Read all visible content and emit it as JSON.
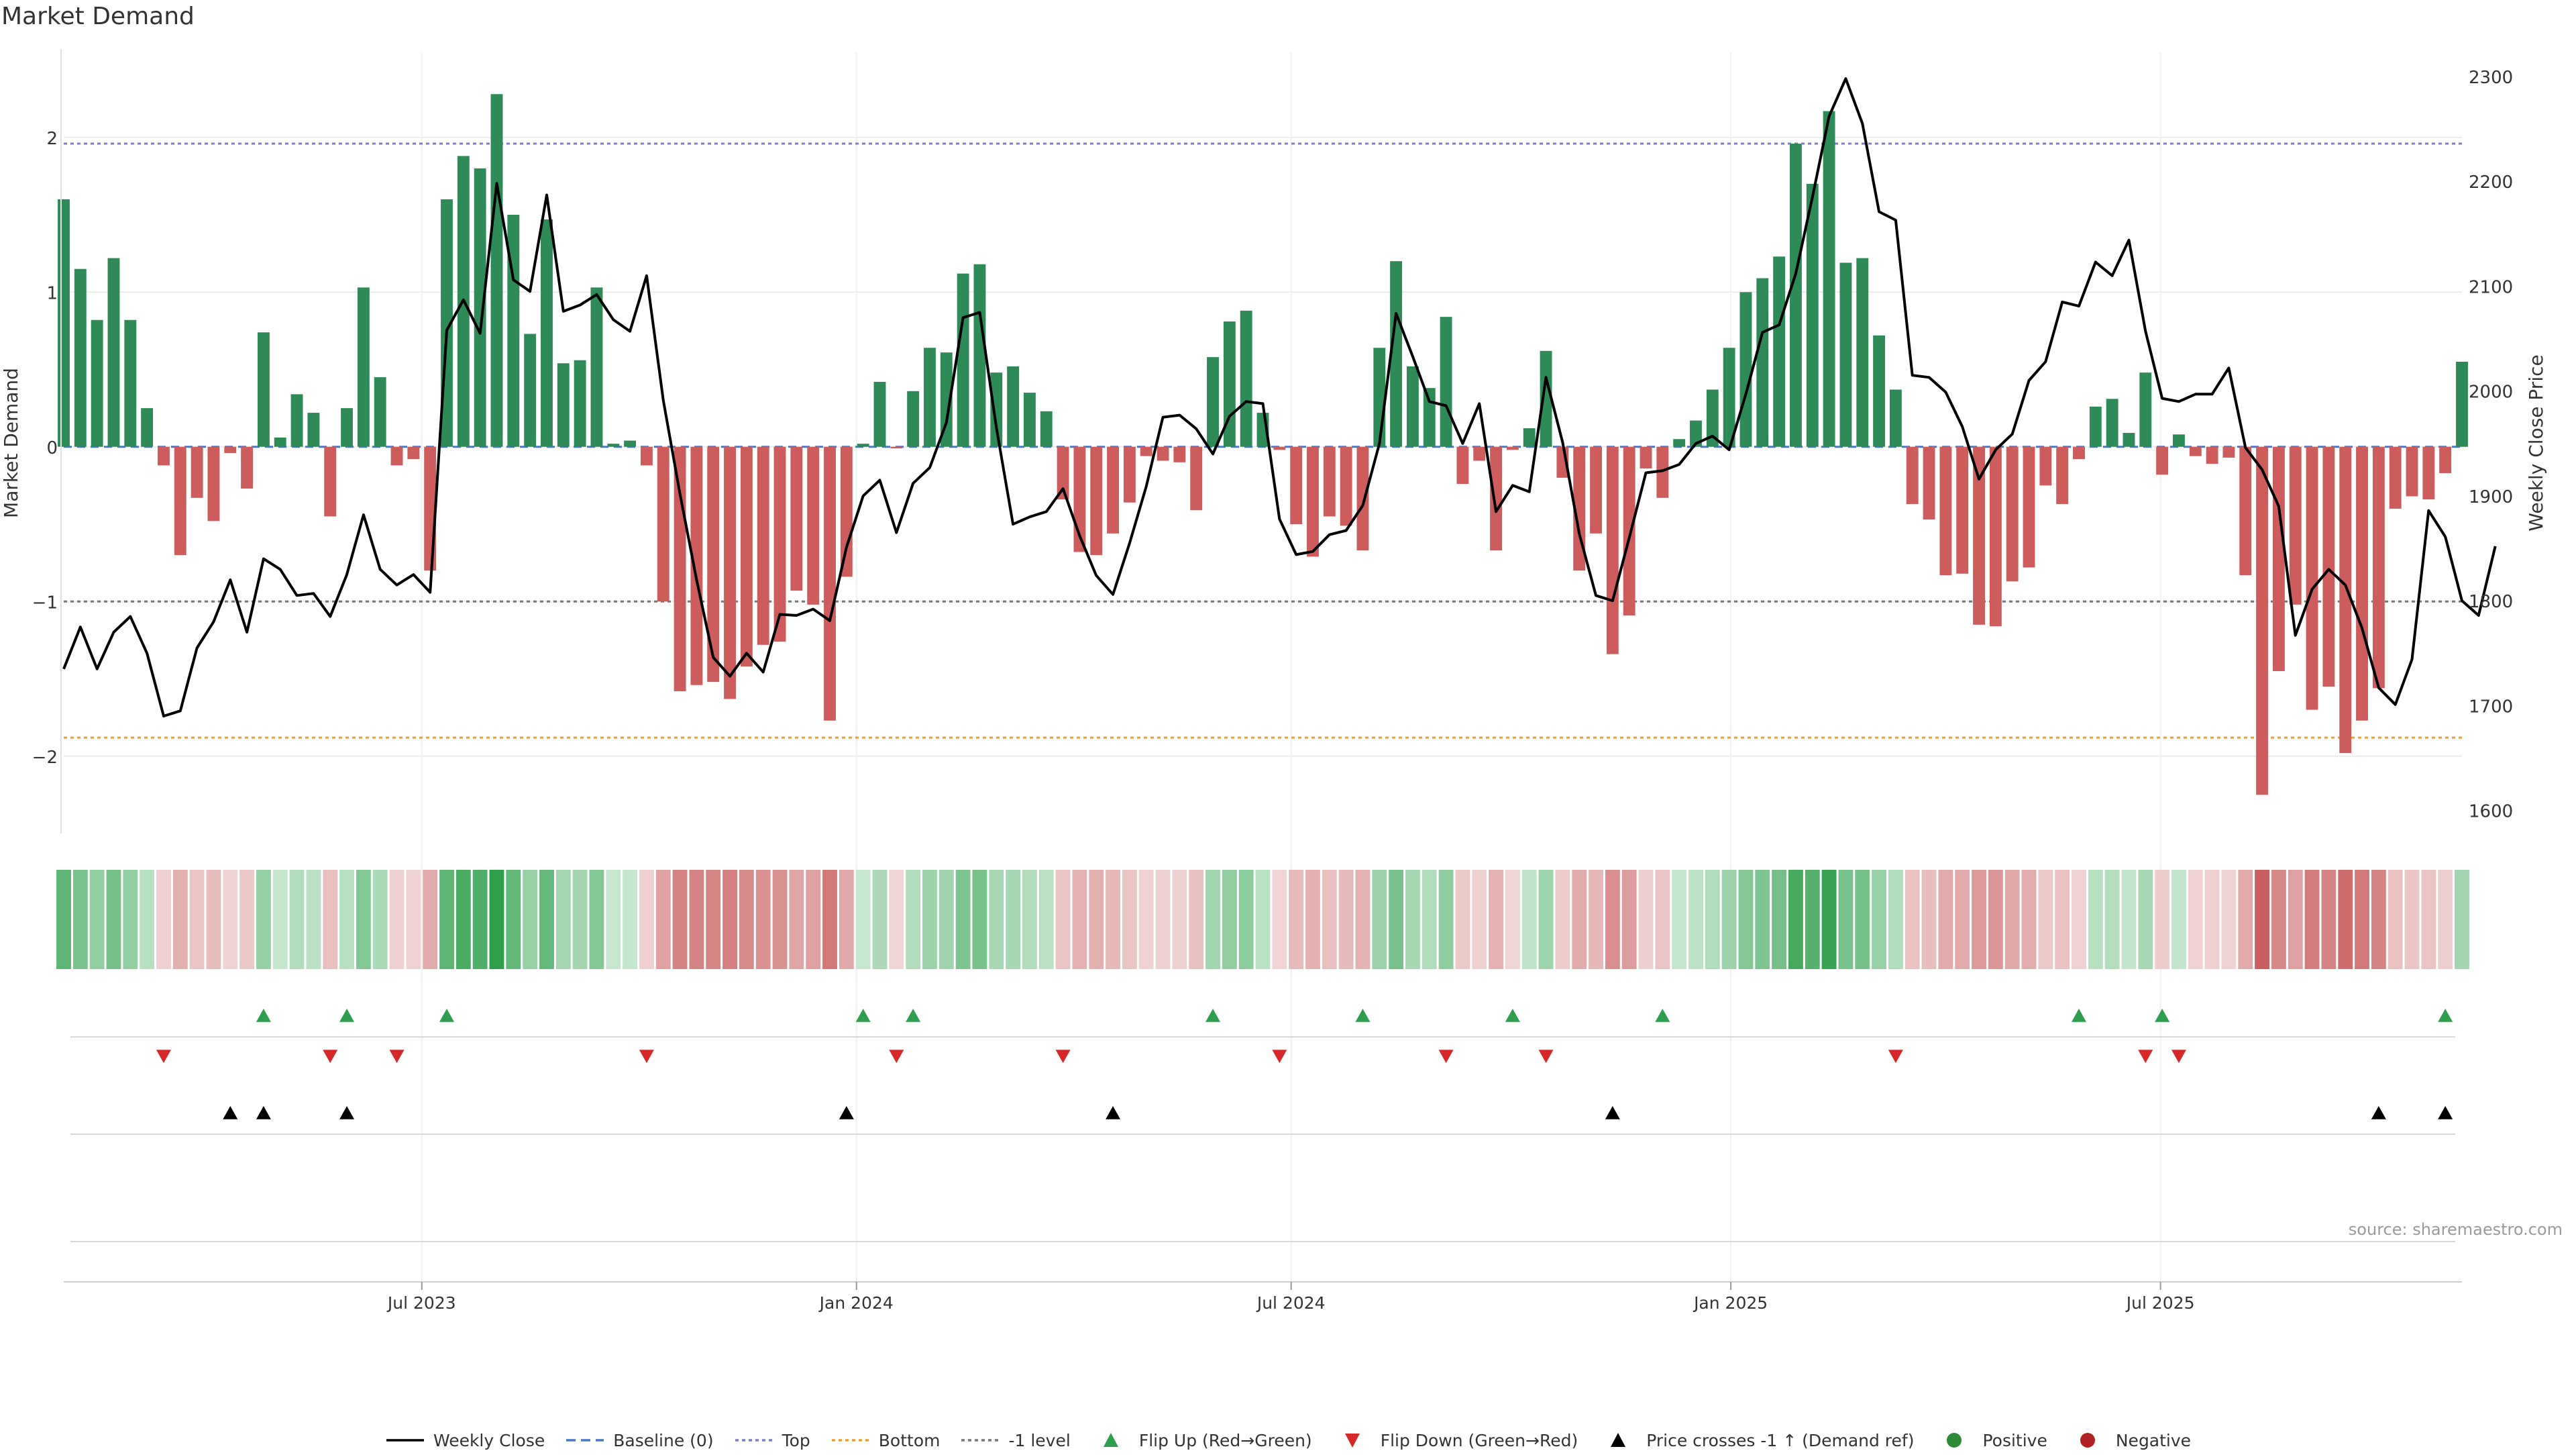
{
  "chart_data": {
    "type": "bar",
    "title": "Market Demand",
    "ylabel": "Market Demand",
    "y2label": "Weekly Close Price",
    "ylim": [
      -2.5,
      2.55
    ],
    "y2lim": [
      1578,
      2323
    ],
    "yticks": [
      2,
      1,
      0,
      -1,
      -2
    ],
    "ytick_labels": [
      "2",
      "1",
      "0",
      "−1",
      "−2"
    ],
    "y2ticks": [
      2300,
      2200,
      2100,
      2000,
      1900,
      1800,
      1700,
      1600
    ],
    "y2tick_labels": [
      "2300",
      "2200",
      "2100",
      "2000",
      "1900",
      "1800",
      "1700",
      "1600"
    ],
    "x_start_week": 0,
    "x_end_week": 144,
    "xticks": [
      {
        "week": 21.5,
        "label": "Jul 2023"
      },
      {
        "week": 47.6,
        "label": "Jan 2024"
      },
      {
        "week": 73.7,
        "label": "Jul 2024"
      },
      {
        "week": 100.1,
        "label": "Jan 2025"
      },
      {
        "week": 125.9,
        "label": "Jul 2025"
      }
    ],
    "reference_lines": [
      {
        "name": "Top",
        "value": 1.96,
        "color": "#7b7fc9"
      },
      {
        "name": "Bottom",
        "value": -1.88,
        "color": "#e8a030"
      },
      {
        "name": "-1 level",
        "value": -1.0,
        "color": "#777777"
      }
    ],
    "series": [
      {
        "name": "Market Demand",
        "type": "bar",
        "positive_color": "#2e8b57",
        "negative_color": "#cd5c5c",
        "values": [
          1.6,
          1.15,
          0.82,
          1.22,
          0.82,
          0.25,
          -0.12,
          -0.7,
          -0.33,
          -0.48,
          -0.04,
          -0.27,
          0.74,
          0.06,
          0.34,
          0.22,
          -0.45,
          0.25,
          1.03,
          0.45,
          -0.12,
          -0.08,
          -0.8,
          1.6,
          1.88,
          1.8,
          2.28,
          1.5,
          0.73,
          1.47,
          0.54,
          0.56,
          1.03,
          0.02,
          0.04,
          -0.12,
          -1.0,
          -1.58,
          -1.54,
          -1.52,
          -1.63,
          -1.42,
          -1.28,
          -1.26,
          -0.93,
          -1.02,
          -1.77,
          -0.84,
          0.02,
          0.42,
          -0.01,
          0.36,
          0.64,
          0.61,
          1.12,
          1.18,
          0.48,
          0.52,
          0.35,
          0.23,
          -0.34,
          -0.68,
          -0.7,
          -0.56,
          -0.36,
          -0.06,
          -0.09,
          -0.1,
          -0.41,
          0.58,
          0.81,
          0.88,
          0.22,
          -0.02,
          -0.5,
          -0.71,
          -0.45,
          -0.51,
          -0.67,
          0.64,
          1.2,
          0.52,
          0.38,
          0.84,
          -0.24,
          -0.09,
          -0.67,
          -0.02,
          0.12,
          0.62,
          -0.2,
          -0.8,
          -0.56,
          -1.34,
          -1.09,
          -0.14,
          -0.33,
          0.05,
          0.17,
          0.37,
          0.64,
          1.0,
          1.09,
          1.23,
          1.96,
          1.7,
          2.17,
          1.19,
          1.22,
          0.72,
          0.37,
          -0.37,
          -0.47,
          -0.83,
          -0.82,
          -1.15,
          -1.16,
          -0.87,
          -0.78,
          -0.25,
          -0.37,
          -0.08,
          0.26,
          0.31,
          0.09,
          0.48,
          -0.18,
          0.08,
          -0.06,
          -0.11,
          -0.07,
          -0.83,
          -2.25,
          -1.45,
          -1.02,
          -1.7,
          -1.55,
          -1.98,
          -1.77,
          -1.56,
          -0.4,
          -0.32,
          -0.34,
          -0.17,
          0.55
        ]
      },
      {
        "name": "Weekly Close",
        "type": "line",
        "color": "#000000",
        "axis": "y2",
        "values": [
          1735,
          1775,
          1735,
          1770,
          1785,
          1750,
          1690,
          1695,
          1755,
          1780,
          1820,
          1770,
          1840,
          1830,
          1805,
          1807,
          1785,
          1825,
          1882,
          1830,
          1815,
          1825,
          1808,
          2058,
          2087,
          2055,
          2198,
          2106,
          2095,
          2187,
          2076,
          2082,
          2092,
          2068,
          2057,
          2110,
          1991,
          1902,
          1820,
          1746,
          1728,
          1750,
          1732,
          1787,
          1786,
          1792,
          1781,
          1851,
          1900,
          1915,
          1865,
          1912,
          1927,
          1970,
          2070,
          2075,
          1965,
          1873,
          1880,
          1885,
          1907,
          1862,
          1824,
          1806,
          1855,
          1909,
          1975,
          1977,
          1964,
          1940,
          1976,
          1990,
          1988,
          1878,
          1844,
          1847,
          1863,
          1867,
          1891,
          1950,
          2074,
          2033,
          1990,
          1986,
          1950,
          1988,
          1885,
          1910,
          1904,
          2013,
          1951,
          1864,
          1805,
          1800,
          1860,
          1922,
          1924,
          1930,
          1950,
          1957,
          1944,
          1997,
          2056,
          2063,
          2112,
          2185,
          2262,
          2298,
          2255,
          2171,
          2163,
          2015,
          2013,
          1999,
          1966,
          1916,
          1944,
          1959,
          2010,
          2028,
          2085,
          2081,
          2123,
          2110,
          2144,
          2057,
          1993,
          1990,
          1997,
          1997,
          2022,
          1946,
          1925,
          1890,
          1767,
          1811,
          1830,
          1815,
          1774,
          1717,
          1701,
          1744,
          1886,
          1861,
          1800,
          1786,
          1852
        ]
      },
      {
        "name": "Baseline (0)",
        "type": "line",
        "color": "#4a78c8",
        "value": 0
      }
    ],
    "flip_up_weeks": [
      12,
      17,
      23,
      48,
      51,
      69,
      78,
      87,
      96,
      121,
      126,
      143
    ],
    "flip_down_weeks": [
      6,
      16,
      20,
      35,
      50,
      60,
      73,
      83,
      89,
      110,
      125,
      127
    ],
    "price_cross_weeks": [
      10,
      12,
      17,
      47,
      63,
      93,
      139,
      143
    ],
    "annotations": [
      "source: sharemaestro.com"
    ]
  },
  "legend": [
    {
      "label": "Weekly Close",
      "symbol": "line",
      "color": "#000000"
    },
    {
      "label": "Baseline (0)",
      "symbol": "dash",
      "color": "#4a78c8"
    },
    {
      "label": "Top",
      "symbol": "dot",
      "color": "#7b7fc9"
    },
    {
      "label": "Bottom",
      "symbol": "dot",
      "color": "#e8a030"
    },
    {
      "label": "-1 level",
      "symbol": "dot",
      "color": "#777777"
    },
    {
      "label": "Flip Up (Red→Green)",
      "symbol": "triangle-up",
      "color": "#2e9e4e"
    },
    {
      "label": "Flip Down (Green→Red)",
      "symbol": "triangle-down",
      "color": "#d62828"
    },
    {
      "label": "Price crosses -1 ↑ (Demand ref)",
      "symbol": "triangle-up",
      "color": "#000000"
    },
    {
      "label": "Positive",
      "symbol": "circle",
      "color": "#2e8b35"
    },
    {
      "label": "Negative",
      "symbol": "circle",
      "color": "#b22222"
    }
  ],
  "source_text": "source: sharemaestro.com"
}
